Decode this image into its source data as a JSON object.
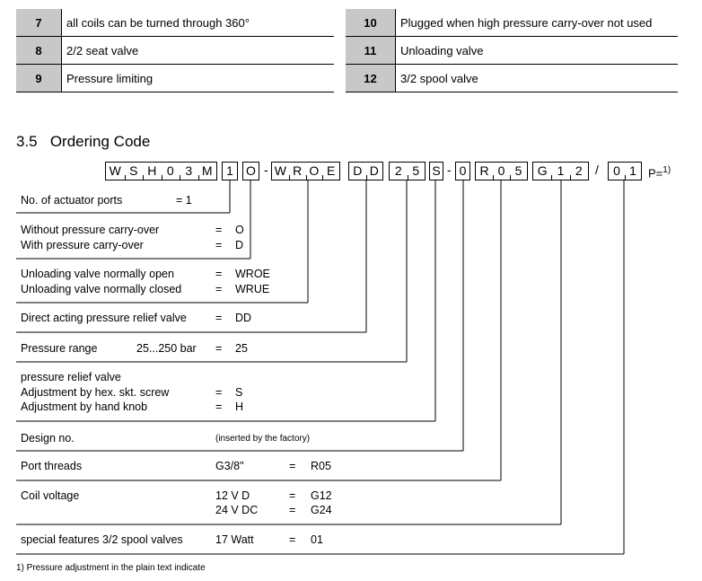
{
  "legend_table": {
    "left": [
      {
        "num": "7",
        "text": "all coils can be turned through 360°"
      },
      {
        "num": "8",
        "text": "2/2 seat valve"
      },
      {
        "num": "9",
        "text": "Pressure limiting"
      }
    ],
    "right": [
      {
        "num": "10",
        "text": "Plugged when high pressure carry-over not used"
      },
      {
        "num": "11",
        "text": "Unloading valve"
      },
      {
        "num": "12",
        "text": "3/2 spool valve"
      }
    ]
  },
  "section": {
    "number": "3.5",
    "title": "Ordering Code"
  },
  "code": {
    "groups": [
      [
        "W",
        "S",
        "H",
        "0",
        "3",
        "M"
      ],
      [
        "1"
      ],
      [
        "O"
      ],
      [
        "W",
        "R",
        "O",
        "E"
      ],
      [
        "D",
        "D"
      ],
      [
        "2",
        "5"
      ],
      [
        "S"
      ],
      [
        "0"
      ],
      [
        "R",
        "0",
        "5"
      ],
      [
        "G",
        "1",
        "2"
      ],
      [
        "0",
        "1"
      ]
    ],
    "sep1": "-",
    "sep2": "-",
    "sep3": "/",
    "suffix": "P=",
    "suffix_note": "1)"
  },
  "rows": [
    {
      "lines": [
        {
          "label": "No. of actuator ports",
          "eq": "= 1"
        }
      ]
    },
    {
      "lines": [
        {
          "label": "Without pressure carry-over",
          "eq": "=",
          "val": "O"
        },
        {
          "label": "With pressure carry-over",
          "eq": "=",
          "val": "D"
        }
      ]
    },
    {
      "lines": [
        {
          "label": "Unloading valve normally open",
          "eq": "=",
          "val": "WROE"
        },
        {
          "label": "Unloading valve normally closed",
          "eq": "=",
          "val": "WRUE"
        }
      ]
    },
    {
      "lines": [
        {
          "label": "Direct acting pressure relief valve",
          "eq": "=",
          "val": "DD"
        }
      ]
    },
    {
      "lines": [
        {
          "label": "Pressure range",
          "mid": "25...250 bar",
          "eq": "=",
          "val": "25"
        }
      ]
    },
    {
      "lines": [
        {
          "label": "pressure relief valve"
        },
        {
          "label": "Adjustment by hex. skt. screw",
          "eq": "=",
          "val": "S"
        },
        {
          "label": "Adjustment by hand knob",
          "eq": "=",
          "val": "H"
        }
      ]
    },
    {
      "lines": [
        {
          "label": "Design no.",
          "note": "(inserted by the factory)"
        }
      ]
    },
    {
      "lines": [
        {
          "label": "Port threads",
          "mid": "G3/8\"",
          "eq": "=",
          "val": "R05"
        }
      ]
    },
    {
      "lines": [
        {
          "label": "Coil voltage",
          "mid": "12 V D",
          "eq": "=",
          "val": "G12"
        },
        {
          "mid": "24 V DC",
          "eq": "=",
          "val": "G24"
        }
      ]
    },
    {
      "lines": [
        {
          "label": "special features 3/2 spool valves",
          "mid": "17 Watt",
          "eq": "=",
          "val": "01"
        }
      ]
    }
  ],
  "footnote": "1) Pressure adjustment in the plain text indicate"
}
